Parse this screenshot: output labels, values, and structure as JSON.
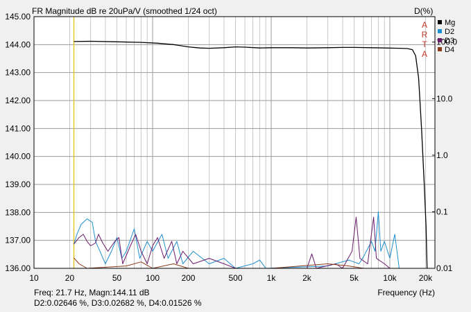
{
  "chart_data": {
    "type": "line",
    "title": "FR Magnitude dB re 20uPa/V (smoothed 1/24 oct)",
    "right_title": "D(%)",
    "watermark": [
      "A",
      "R",
      "T",
      "A"
    ],
    "xlabel": "Frequency (Hz)",
    "x_scale": "log",
    "xlim": [
      10,
      24000
    ],
    "x_ticks": [
      {
        "v": 10,
        "label": "10"
      },
      {
        "v": 20,
        "label": "20"
      },
      {
        "v": 50,
        "label": "50"
      },
      {
        "v": 100,
        "label": "100"
      },
      {
        "v": 200,
        "label": "200"
      },
      {
        "v": 500,
        "label": "500"
      },
      {
        "v": 1000,
        "label": "1k"
      },
      {
        "v": 2000,
        "label": "2k"
      },
      {
        "v": 5000,
        "label": "5k"
      },
      {
        "v": 10000,
        "label": "10k"
      },
      {
        "v": 20000,
        "label": "20k"
      }
    ],
    "ylim": [
      136,
      145
    ],
    "y_ticks": [
      {
        "v": 136,
        "label": "136.00"
      },
      {
        "v": 137,
        "label": "137.00"
      },
      {
        "v": 138,
        "label": "138.00"
      },
      {
        "v": 139,
        "label": "139.00"
      },
      {
        "v": 140,
        "label": "140.00"
      },
      {
        "v": 141,
        "label": "141.00"
      },
      {
        "v": 142,
        "label": "142.00"
      },
      {
        "v": 143,
        "label": "143.00"
      },
      {
        "v": 144,
        "label": "144.00"
      },
      {
        "v": 145,
        "label": "145.00"
      }
    ],
    "y2_scale": "log",
    "y2_ticks": [
      {
        "v": 0.01,
        "label": "0.01"
      },
      {
        "v": 0.1,
        "label": "0.1"
      },
      {
        "v": 1,
        "label": "1.0"
      },
      {
        "v": 10,
        "label": "10.0"
      },
      {
        "v": 100,
        "label": "100.0"
      }
    ],
    "grid": true,
    "legend_position": "top-right",
    "cursor": {
      "freq": 21.7,
      "color": "#e8c000"
    },
    "series": [
      {
        "name": "Mg",
        "color": "#000000",
        "axis": "left",
        "points": [
          [
            21.7,
            144.11
          ],
          [
            30,
            144.12
          ],
          [
            50,
            144.1
          ],
          [
            80,
            144.08
          ],
          [
            110,
            144.05
          ],
          [
            150,
            144.0
          ],
          [
            200,
            143.92
          ],
          [
            250,
            143.88
          ],
          [
            300,
            143.87
          ],
          [
            400,
            143.89
          ],
          [
            500,
            143.92
          ],
          [
            600,
            143.91
          ],
          [
            800,
            143.88
          ],
          [
            1000,
            143.89
          ],
          [
            1500,
            143.89
          ],
          [
            2000,
            143.88
          ],
          [
            3000,
            143.89
          ],
          [
            4000,
            143.9
          ],
          [
            5000,
            143.9
          ],
          [
            7000,
            143.89
          ],
          [
            9000,
            143.88
          ],
          [
            12000,
            143.87
          ],
          [
            14000,
            143.86
          ],
          [
            15500,
            143.82
          ],
          [
            16500,
            143.6
          ],
          [
            17500,
            142.8
          ],
          [
            18500,
            141.0
          ],
          [
            19500,
            139.0
          ],
          [
            20200,
            137.5
          ],
          [
            20600,
            136.0
          ]
        ]
      },
      {
        "name": "D2",
        "color": "#1e8fd0",
        "axis": "right",
        "points": [
          [
            21.7,
            0.02646
          ],
          [
            23,
            0.04
          ],
          [
            25,
            0.06
          ],
          [
            28,
            0.075
          ],
          [
            31,
            0.065
          ],
          [
            33,
            0.03
          ],
          [
            36,
            0.02
          ],
          [
            40,
            0.012
          ],
          [
            45,
            0.02
          ],
          [
            50,
            0.035
          ],
          [
            55,
            0.015
          ],
          [
            60,
            0.02
          ],
          [
            70,
            0.05
          ],
          [
            78,
            0.015
          ],
          [
            90,
            0.03
          ],
          [
            100,
            0.02
          ],
          [
            120,
            0.04
          ],
          [
            135,
            0.015
          ],
          [
            160,
            0.03
          ],
          [
            180,
            0.012
          ],
          [
            220,
            0.02
          ],
          [
            300,
            0.012
          ],
          [
            400,
            0.015
          ],
          [
            500,
            0.01
          ],
          [
            700,
            0.012
          ],
          [
            800,
            0.014
          ],
          [
            900,
            0.01
          ],
          [
            3000,
            0.011
          ],
          [
            4500,
            0.014
          ],
          [
            5500,
            0.012
          ],
          [
            6000,
            0.016
          ],
          [
            7000,
            0.03
          ],
          [
            7500,
            0.02
          ],
          [
            8000,
            0.1
          ],
          [
            8400,
            0.02
          ],
          [
            9000,
            0.03
          ],
          [
            10000,
            0.015
          ],
          [
            11000,
            0.04
          ],
          [
            12000,
            0.01
          ]
        ]
      },
      {
        "name": "D3",
        "color": "#6a1a6a",
        "axis": "right",
        "points": [
          [
            21.7,
            0.02682
          ],
          [
            24,
            0.035
          ],
          [
            26,
            0.04
          ],
          [
            28,
            0.03
          ],
          [
            30,
            0.025
          ],
          [
            33,
            0.028
          ],
          [
            35,
            0.04
          ],
          [
            38,
            0.028
          ],
          [
            42,
            0.02
          ],
          [
            48,
            0.03
          ],
          [
            52,
            0.035
          ],
          [
            56,
            0.012
          ],
          [
            65,
            0.025
          ],
          [
            72,
            0.04
          ],
          [
            80,
            0.02
          ],
          [
            90,
            0.012
          ],
          [
            100,
            0.025
          ],
          [
            110,
            0.035
          ],
          [
            125,
            0.015
          ],
          [
            145,
            0.03
          ],
          [
            160,
            0.012
          ],
          [
            180,
            0.02
          ],
          [
            220,
            0.012
          ],
          [
            300,
            0.015
          ],
          [
            400,
            0.012
          ],
          [
            500,
            0.01
          ],
          [
            2000,
            0.01
          ],
          [
            2200,
            0.018
          ],
          [
            2400,
            0.01
          ],
          [
            3500,
            0.012
          ],
          [
            4000,
            0.01
          ],
          [
            4800,
            0.02
          ],
          [
            5200,
            0.08
          ],
          [
            5600,
            0.015
          ],
          [
            6500,
            0.012
          ],
          [
            7300,
            0.08
          ],
          [
            7700,
            0.015
          ],
          [
            9000,
            0.012
          ],
          [
            10000,
            0.01
          ]
        ]
      },
      {
        "name": "D4",
        "color": "#8b3a1a",
        "axis": "right",
        "points": [
          [
            21.7,
            0.01526
          ],
          [
            24,
            0.012
          ],
          [
            28,
            0.01
          ],
          [
            60,
            0.011
          ],
          [
            80,
            0.013
          ],
          [
            100,
            0.01
          ],
          [
            150,
            0.012
          ],
          [
            200,
            0.01
          ],
          [
            1000,
            0.01
          ],
          [
            3000,
            0.012
          ],
          [
            4500,
            0.011
          ],
          [
            6000,
            0.01
          ]
        ]
      }
    ],
    "readout": {
      "line1": "Freq: 21.7 Hz, Magn:144.11 dB",
      "line2": "D2:0.02646 %, D3:0.02682 %, D4:0.01526 %"
    }
  }
}
